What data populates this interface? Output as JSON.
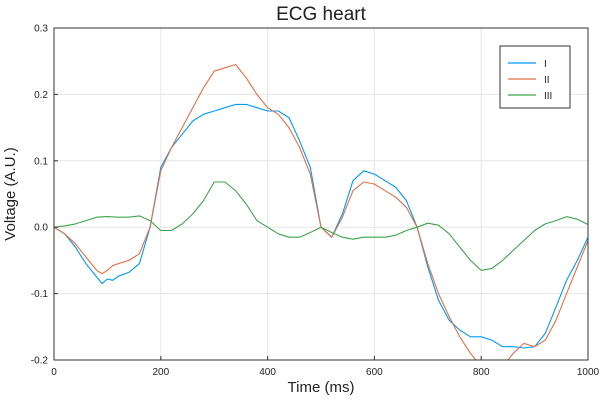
{
  "chart_data": {
    "type": "line",
    "title": "ECG heart",
    "xlabel": "Time (ms)",
    "ylabel": "Voltage (A.U.)",
    "xlim": [
      0,
      1000
    ],
    "ylim": [
      -0.2,
      0.3
    ],
    "xticks": [
      0,
      200,
      400,
      600,
      800,
      1000
    ],
    "xtick_labels": [
      "0",
      "200",
      "400",
      "600",
      "800",
      "1000"
    ],
    "yticks": [
      -0.2,
      -0.1,
      0.0,
      0.1,
      0.2,
      0.3
    ],
    "ytick_labels": [
      "-0.2",
      "-0.1",
      "0.0",
      "0.1",
      "0.2",
      "0.3"
    ],
    "grid": true,
    "legend_position": "top-right",
    "series": [
      {
        "name": "I",
        "color": "#009af9",
        "x": [
          0,
          20,
          40,
          60,
          80,
          90,
          100,
          110,
          120,
          140,
          160,
          180,
          200,
          220,
          240,
          260,
          280,
          300,
          320,
          340,
          360,
          380,
          400,
          420,
          440,
          460,
          480,
          500,
          520,
          540,
          560,
          580,
          600,
          620,
          640,
          660,
          680,
          700,
          720,
          740,
          760,
          780,
          800,
          820,
          840,
          860,
          880,
          900,
          920,
          940,
          960,
          980,
          1000
        ],
        "y": [
          0.0,
          -0.01,
          -0.03,
          -0.055,
          -0.075,
          -0.085,
          -0.078,
          -0.08,
          -0.074,
          -0.068,
          -0.055,
          0.0,
          0.09,
          0.12,
          0.14,
          0.16,
          0.17,
          0.175,
          0.18,
          0.185,
          0.185,
          0.18,
          0.175,
          0.175,
          0.165,
          0.13,
          0.09,
          0.0,
          -0.015,
          0.02,
          0.07,
          0.085,
          0.08,
          0.07,
          0.06,
          0.04,
          0.0,
          -0.06,
          -0.11,
          -0.14,
          -0.155,
          -0.165,
          -0.165,
          -0.17,
          -0.18,
          -0.18,
          -0.182,
          -0.18,
          -0.16,
          -0.12,
          -0.08,
          -0.05,
          -0.015
        ]
      },
      {
        "name": "II",
        "color": "#e26f46",
        "x": [
          0,
          20,
          40,
          60,
          80,
          90,
          100,
          110,
          120,
          140,
          160,
          180,
          200,
          220,
          240,
          260,
          280,
          300,
          320,
          340,
          360,
          380,
          400,
          420,
          440,
          460,
          480,
          500,
          520,
          540,
          560,
          580,
          600,
          620,
          640,
          660,
          680,
          700,
          720,
          740,
          760,
          780,
          790,
          800,
          820,
          840,
          860,
          880,
          900,
          920,
          940,
          960,
          980,
          1000
        ],
        "y": [
          0.0,
          -0.01,
          -0.025,
          -0.045,
          -0.065,
          -0.07,
          -0.065,
          -0.058,
          -0.055,
          -0.05,
          -0.04,
          0.0,
          0.085,
          0.12,
          0.15,
          0.18,
          0.21,
          0.235,
          0.24,
          0.245,
          0.225,
          0.2,
          0.18,
          0.17,
          0.15,
          0.12,
          0.08,
          0.0,
          -0.015,
          0.015,
          0.055,
          0.068,
          0.065,
          0.055,
          0.045,
          0.03,
          0.0,
          -0.055,
          -0.1,
          -0.135,
          -0.165,
          -0.19,
          -0.2,
          -0.21,
          -0.22,
          -0.21,
          -0.19,
          -0.175,
          -0.18,
          -0.17,
          -0.14,
          -0.1,
          -0.06,
          -0.02
        ]
      },
      {
        "name": "III",
        "color": "#3da44d",
        "x": [
          0,
          20,
          40,
          60,
          80,
          100,
          120,
          140,
          160,
          180,
          200,
          220,
          240,
          260,
          280,
          300,
          320,
          340,
          360,
          380,
          400,
          420,
          440,
          460,
          480,
          500,
          520,
          540,
          560,
          580,
          600,
          620,
          640,
          660,
          680,
          700,
          720,
          740,
          760,
          780,
          800,
          820,
          840,
          860,
          880,
          900,
          920,
          940,
          960,
          980,
          1000
        ],
        "y": [
          0.0,
          0.002,
          0.005,
          0.01,
          0.015,
          0.016,
          0.015,
          0.015,
          0.017,
          0.01,
          -0.005,
          -0.005,
          0.005,
          0.02,
          0.04,
          0.068,
          0.068,
          0.055,
          0.035,
          0.01,
          0.0,
          -0.01,
          -0.015,
          -0.015,
          -0.008,
          0.0,
          -0.008,
          -0.015,
          -0.018,
          -0.015,
          -0.015,
          -0.015,
          -0.012,
          -0.005,
          0.0,
          0.006,
          0.003,
          -0.01,
          -0.03,
          -0.05,
          -0.065,
          -0.062,
          -0.05,
          -0.035,
          -0.02,
          -0.005,
          0.005,
          0.01,
          0.016,
          0.012,
          0.004
        ]
      }
    ]
  }
}
